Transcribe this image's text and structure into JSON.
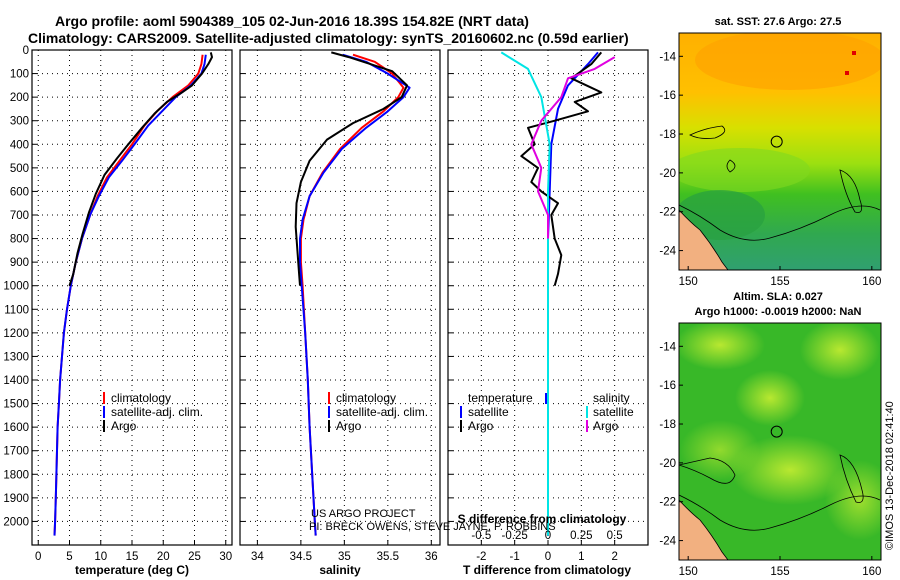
{
  "header": {
    "line1": "Argo profile: aoml 5904389_105 02-Jun-2016 18.39S 154.82E (NRT data)",
    "line2": "Climatology: CARS2009. Satellite-adjusted climatology: synTS_20160602.nc (0.59d earlier)"
  },
  "colors": {
    "climatology": "#ff0000",
    "satellite": "#0000ff",
    "argo": "#000000",
    "sal_satellite": "#00e5e5",
    "sal_argo": "#e000e0"
  },
  "credits": {
    "project": "US ARGO PROJECT",
    "pi": "PI: BRECK OWENS, STEVE JAYNE, P. ROBBINS",
    "stamp": "©IMOS 13-Dec-2018 02:41:40"
  },
  "chart_data": [
    {
      "type": "line",
      "id": "temperature",
      "xlabel": "temperature (deg C)",
      "xlim": [
        -1,
        31
      ],
      "ylim": [
        2100,
        0
      ],
      "xticks": [
        0,
        5,
        10,
        15,
        20,
        25,
        30
      ],
      "yticks": [
        0,
        100,
        200,
        300,
        400,
        500,
        600,
        700,
        800,
        900,
        1000,
        1100,
        1200,
        1300,
        1400,
        1500,
        1600,
        1700,
        1800,
        1900,
        2000
      ],
      "legend": {
        "position": "bottom-left",
        "entries": [
          "climatology",
          "satellite-adj. clim.",
          "Argo"
        ]
      },
      "series": [
        {
          "name": "climatology",
          "color": "#ff0000",
          "points": [
            [
              26.3,
              20
            ],
            [
              26.1,
              60
            ],
            [
              25.6,
              100
            ],
            [
              24,
              150
            ],
            [
              21.5,
              200
            ],
            [
              19,
              260
            ],
            [
              17,
              320
            ],
            [
              15,
              400
            ],
            [
              13,
              470
            ],
            [
              11,
              540
            ],
            [
              9.5,
              620
            ],
            [
              8.3,
              700
            ],
            [
              7,
              800
            ],
            [
              6,
              900
            ],
            [
              5.2,
              1000
            ],
            [
              4.6,
              1100
            ],
            [
              4.1,
              1200
            ],
            [
              3.8,
              1300
            ],
            [
              3.5,
              1400
            ],
            [
              3.3,
              1500
            ],
            [
              3.1,
              1600
            ],
            [
              3,
              1700
            ],
            [
              2.9,
              1800
            ],
            [
              2.8,
              1900
            ],
            [
              2.7,
              2000
            ],
            [
              2.6,
              2060
            ]
          ]
        },
        {
          "name": "satellite-adj. clim.",
          "color": "#0000ff",
          "points": [
            [
              26.8,
              20
            ],
            [
              26.6,
              60
            ],
            [
              26.1,
              100
            ],
            [
              24.4,
              150
            ],
            [
              22,
              200
            ],
            [
              19.8,
              260
            ],
            [
              17.6,
              320
            ],
            [
              15.4,
              400
            ],
            [
              13.4,
              470
            ],
            [
              11.3,
              540
            ],
            [
              9.7,
              620
            ],
            [
              8.3,
              700
            ],
            [
              7,
              800
            ],
            [
              6,
              900
            ],
            [
              5.2,
              1000
            ],
            [
              4.6,
              1100
            ],
            [
              4.1,
              1200
            ],
            [
              3.8,
              1300
            ],
            [
              3.5,
              1400
            ],
            [
              3.3,
              1500
            ],
            [
              3.1,
              1600
            ],
            [
              3,
              1700
            ],
            [
              2.9,
              1800
            ],
            [
              2.8,
              1900
            ],
            [
              2.7,
              2000
            ],
            [
              2.6,
              2060
            ]
          ]
        },
        {
          "name": "Argo",
          "color": "#000000",
          "points": [
            [
              27.6,
              10
            ],
            [
              27.8,
              30
            ],
            [
              27.2,
              60
            ],
            [
              26.2,
              100
            ],
            [
              24.6,
              150
            ],
            [
              23,
              180
            ],
            [
              20.6,
              220
            ],
            [
              18.6,
              270
            ],
            [
              16.6,
              330
            ],
            [
              14.4,
              400
            ],
            [
              12.6,
              460
            ],
            [
              10.6,
              530
            ],
            [
              9.2,
              610
            ],
            [
              8.1,
              690
            ],
            [
              7.1,
              780
            ],
            [
              6.3,
              860
            ],
            [
              5.6,
              950
            ],
            [
              5,
              1000
            ]
          ]
        }
      ]
    },
    {
      "type": "line",
      "id": "salinity",
      "xlabel": "salinity",
      "xlim": [
        33.8,
        36.1
      ],
      "ylim": [
        2100,
        0
      ],
      "xticks": [
        34,
        34.5,
        35,
        35.5,
        36
      ],
      "legend": {
        "position": "bottom-right",
        "entries": [
          "climatology",
          "satellite-adj. clim.",
          "Argo"
        ]
      },
      "series": [
        {
          "name": "climatology",
          "color": "#ff0000",
          "points": [
            [
              35.1,
              20
            ],
            [
              35.35,
              50
            ],
            [
              35.55,
              100
            ],
            [
              35.68,
              160
            ],
            [
              35.62,
              200
            ],
            [
              35.45,
              260
            ],
            [
              35.2,
              330
            ],
            [
              34.95,
              420
            ],
            [
              34.75,
              520
            ],
            [
              34.6,
              620
            ],
            [
              34.53,
              720
            ],
            [
              34.5,
              800
            ],
            [
              34.5,
              900
            ],
            [
              34.52,
              1000
            ],
            [
              34.55,
              1200
            ],
            [
              34.58,
              1400
            ],
            [
              34.6,
              1600
            ],
            [
              34.63,
              1800
            ],
            [
              34.66,
              2000
            ],
            [
              34.67,
              2060
            ]
          ]
        },
        {
          "name": "satellite-adj. clim.",
          "color": "#0000ff",
          "points": [
            [
              34.98,
              20
            ],
            [
              35.25,
              50
            ],
            [
              35.5,
              100
            ],
            [
              35.75,
              160
            ],
            [
              35.68,
              200
            ],
            [
              35.5,
              260
            ],
            [
              35.25,
              330
            ],
            [
              34.97,
              420
            ],
            [
              34.76,
              520
            ],
            [
              34.6,
              620
            ],
            [
              34.52,
              720
            ],
            [
              34.49,
              800
            ],
            [
              34.49,
              900
            ],
            [
              34.51,
              1000
            ],
            [
              34.55,
              1200
            ],
            [
              34.58,
              1400
            ],
            [
              34.6,
              1600
            ],
            [
              34.63,
              1800
            ],
            [
              34.66,
              2000
            ],
            [
              34.67,
              2060
            ]
          ]
        },
        {
          "name": "Argo",
          "color": "#000000",
          "points": [
            [
              34.85,
              10
            ],
            [
              35.05,
              30
            ],
            [
              35.3,
              60
            ],
            [
              35.55,
              90
            ],
            [
              35.72,
              150
            ],
            [
              35.66,
              200
            ],
            [
              35.45,
              250
            ],
            [
              35.1,
              310
            ],
            [
              34.8,
              380
            ],
            [
              34.6,
              470
            ],
            [
              34.5,
              560
            ],
            [
              34.45,
              650
            ],
            [
              34.44,
              750
            ],
            [
              34.46,
              850
            ],
            [
              34.48,
              950
            ],
            [
              34.49,
              1000
            ]
          ]
        }
      ]
    },
    {
      "type": "line",
      "id": "difference",
      "xlabel": "T difference from climatology",
      "top_axis_label": "S difference from climatology",
      "xlim": [
        -3,
        3
      ],
      "ylim": [
        2100,
        0
      ],
      "xticks": [
        -2,
        -1,
        0,
        1,
        2
      ],
      "top_ticks": [
        "-0.5",
        "-0.25",
        "0",
        "0.25",
        "0.5"
      ],
      "legend": {
        "position": "bottom",
        "left_title": "temperature",
        "right_title": "salinity",
        "entries": [
          "satellite",
          "Argo",
          "satellite",
          "Argo"
        ]
      },
      "series": [
        {
          "name": "T satellite",
          "color": "#0000ff",
          "points": [
            [
              1.5,
              10
            ],
            [
              1.2,
              60
            ],
            [
              0.6,
              150
            ],
            [
              0.3,
              250
            ],
            [
              0.1,
              400
            ],
            [
              0.05,
              600
            ],
            [
              0,
              800
            ],
            [
              0,
              1000
            ],
            [
              0,
              2060
            ]
          ]
        },
        {
          "name": "T Argo",
          "color": "#000000",
          "points": [
            [
              1.6,
              10
            ],
            [
              1.3,
              60
            ],
            [
              0.7,
              120
            ],
            [
              1.3,
              160
            ],
            [
              1.6,
              180
            ],
            [
              0.8,
              220
            ],
            [
              1.2,
              260
            ],
            [
              0.2,
              300
            ],
            [
              -0.6,
              330
            ],
            [
              -0.4,
              400
            ],
            [
              -0.8,
              450
            ],
            [
              -0.3,
              500
            ],
            [
              -0.5,
              560
            ],
            [
              -0.2,
              600
            ],
            [
              0.3,
              650
            ],
            [
              0.1,
              700
            ],
            [
              0.2,
              800
            ],
            [
              0.4,
              870
            ],
            [
              0.3,
              950
            ],
            [
              0.2,
              1000
            ]
          ]
        },
        {
          "name": "S satellite",
          "color": "#00e5e5",
          "points": [
            [
              -1.4,
              10
            ],
            [
              -0.6,
              80
            ],
            [
              -0.2,
              200
            ],
            [
              0.05,
              400
            ],
            [
              0,
              600
            ],
            [
              0,
              1000
            ],
            [
              0,
              2060
            ]
          ]
        },
        {
          "name": "S Argo",
          "color": "#e000e0",
          "points": [
            [
              2,
              30
            ],
            [
              1.4,
              80
            ],
            [
              0.6,
              120
            ],
            [
              0.4,
              200
            ],
            [
              -0.2,
              300
            ],
            [
              -0.5,
              400
            ],
            [
              -0.2,
              500
            ],
            [
              -0.3,
              600
            ],
            [
              0,
              700
            ],
            [
              0,
              800
            ]
          ]
        }
      ]
    },
    {
      "type": "heatmap",
      "id": "sst-map",
      "title": "sat. SST: 27.6 Argo: 27.5",
      "xlim": [
        149.5,
        160.5
      ],
      "ylim": [
        -25,
        -12.8
      ],
      "xticks": [
        150,
        155,
        160
      ],
      "yticks": [
        -14,
        -16,
        -18,
        -20,
        -22,
        -24
      ],
      "marker": [
        154.82,
        -18.39
      ]
    },
    {
      "type": "heatmap",
      "id": "sla-map",
      "title": "Altim. SLA: 0.027",
      "subtitle": "Argo h1000: -0.0019 h2000: NaN",
      "xlim": [
        149.5,
        160.5
      ],
      "ylim": [
        -25,
        -12.8
      ],
      "xticks": [
        150,
        155,
        160
      ],
      "yticks": [
        -14,
        -16,
        -18,
        -20,
        -22,
        -24
      ],
      "marker": [
        154.82,
        -18.39
      ]
    }
  ]
}
